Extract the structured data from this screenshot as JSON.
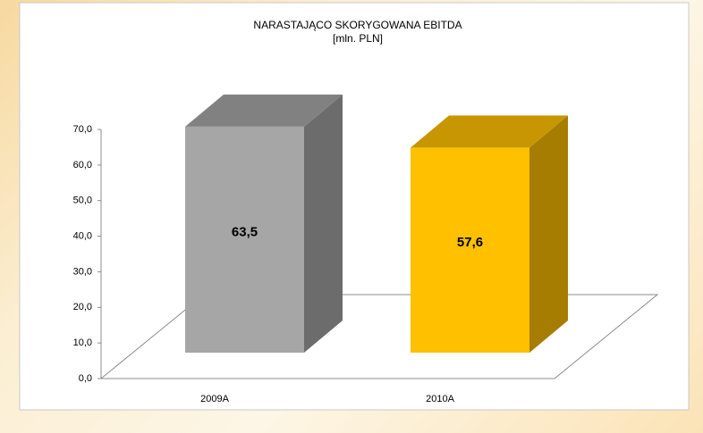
{
  "chart_data": {
    "type": "bar3d",
    "title": "NARASTAJĄCO SKORYGOWANA EBITDA",
    "subtitle": "[mln. PLN]",
    "categories": [
      "2009A",
      "2010A"
    ],
    "values": [
      63.5,
      57.6
    ],
    "value_labels": [
      "63,5",
      "57,6"
    ],
    "colors": [
      "#a6a6a6",
      "#ffc000"
    ],
    "ylim": [
      0,
      70
    ],
    "yticks": [
      {
        "value": 0,
        "label": "0,0"
      },
      {
        "value": 10,
        "label": "10,0"
      },
      {
        "value": 20,
        "label": "20,0"
      },
      {
        "value": 30,
        "label": "30,0"
      },
      {
        "value": 40,
        "label": "40,0"
      },
      {
        "value": 50,
        "label": "50,0"
      },
      {
        "value": 60,
        "label": "60,0"
      },
      {
        "value": 70,
        "label": "70,0"
      }
    ]
  }
}
